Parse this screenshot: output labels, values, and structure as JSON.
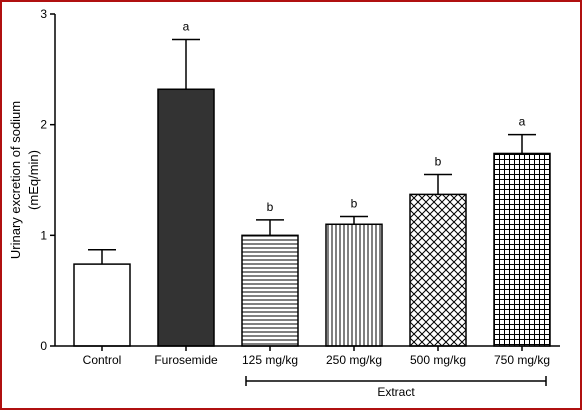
{
  "chart_data": {
    "type": "bar",
    "ylabel_line1": "Urinary excretion of sodium",
    "ylabel_line2": "(mEq/min)",
    "xlabel": "",
    "ylim": [
      0,
      3
    ],
    "yticks": [
      0,
      1,
      2,
      3
    ],
    "categories": [
      "Control",
      "Furosemide",
      "125 mg/kg",
      "250 mg/kg",
      "500 mg/kg",
      "750 mg/kg"
    ],
    "values": [
      0.74,
      2.32,
      1.0,
      1.1,
      1.37,
      1.74
    ],
    "errors": [
      0.13,
      0.45,
      0.14,
      0.07,
      0.18,
      0.17
    ],
    "significance": [
      "",
      "a",
      "b",
      "b",
      "b",
      "a"
    ],
    "fills": [
      "white",
      "dark",
      "horizontal-lines",
      "vertical-lines",
      "crosshatch",
      "grid"
    ],
    "dark_color": "#333333",
    "group_bracket": {
      "label": "Extract",
      "from_category": 2,
      "to_category": 5
    },
    "grid": false,
    "legend": "none"
  }
}
